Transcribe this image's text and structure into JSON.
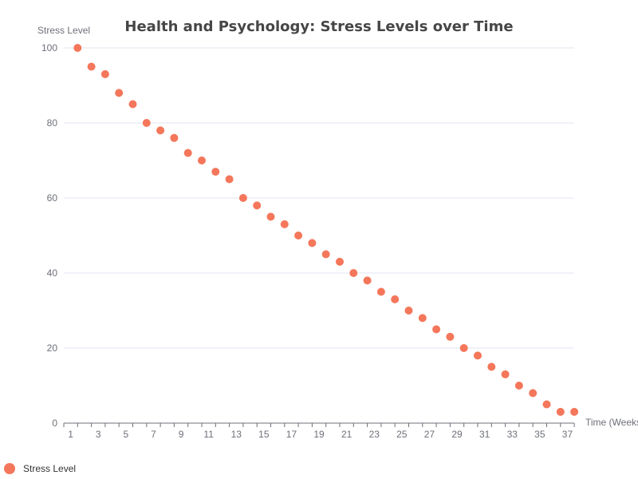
{
  "chart_data": {
    "type": "scatter",
    "title": "Health and Psychology: Stress Levels over Time",
    "xlabel": "Time (Weeks)",
    "ylabel": "Stress Level",
    "x_tick_labels": [
      "1",
      "3",
      "5",
      "7",
      "9",
      "11",
      "13",
      "15",
      "17",
      "19",
      "21",
      "23",
      "25",
      "27",
      "29",
      "31",
      "33",
      "35",
      "37"
    ],
    "y_tick_labels": [
      "0",
      "20",
      "40",
      "60",
      "80",
      "100"
    ],
    "ylim": [
      0,
      100
    ],
    "grid": true,
    "legend_position": "bottom-left",
    "series": [
      {
        "name": "Stress Level",
        "color": "#f4775b",
        "x": [
          1,
          2,
          3,
          4,
          5,
          6,
          7,
          8,
          9,
          10,
          11,
          12,
          13,
          14,
          15,
          16,
          17,
          18,
          19,
          20,
          21,
          22,
          23,
          24,
          25,
          26,
          27,
          28,
          29,
          30,
          31,
          32,
          33,
          34,
          35,
          36,
          37
        ],
        "y": [
          100,
          95,
          93,
          88,
          85,
          80,
          78,
          76,
          72,
          70,
          67,
          65,
          60,
          58,
          55,
          53,
          50,
          48,
          45,
          43,
          40,
          38,
          35,
          33,
          30,
          28,
          25,
          23,
          20,
          18,
          15,
          13,
          10,
          8,
          5,
          3,
          3
        ]
      }
    ]
  }
}
